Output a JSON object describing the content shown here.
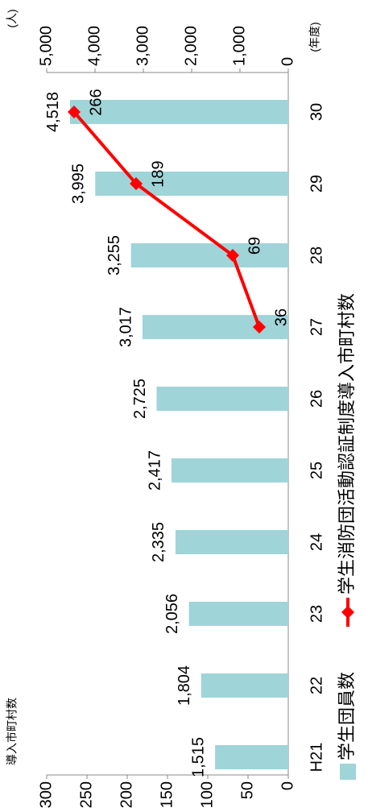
{
  "chart_data": {
    "type": "bar",
    "y_label": "導入市町村数",
    "y2_label": "(人)",
    "x_label": "(年度)",
    "categories": [
      "H21",
      "22",
      "23",
      "24",
      "25",
      "26",
      "27",
      "28",
      "29",
      "30"
    ],
    "series": [
      {
        "name": "学生団員数",
        "type": "bar",
        "color": "#9fd4d8",
        "axis": "y2",
        "values": [
          1515,
          1804,
          2056,
          2335,
          2417,
          2725,
          3017,
          3255,
          3995,
          4518
        ],
        "value_labels": [
          "1,515",
          "1,804",
          "2,056",
          "2,335",
          "2,417",
          "2,725",
          "3,017",
          "3,255",
          "3,995",
          "4,518"
        ]
      },
      {
        "name": "学生消防団活動認証制度導入市町村数",
        "type": "line",
        "color": "#ff0000",
        "axis": "y",
        "values": [
          null,
          null,
          null,
          null,
          null,
          null,
          36,
          69,
          189,
          266
        ]
      }
    ],
    "ylim": [
      0,
      300
    ],
    "yticks": [
      0,
      50,
      100,
      150,
      200,
      250,
      300
    ],
    "y2lim": [
      0,
      5000
    ],
    "y2ticks": [
      0,
      {
        "value": 1000,
        "label": "1,000"
      },
      {
        "value": 2000,
        "label": "2,000"
      },
      {
        "value": 3000,
        "label": "3,000"
      },
      {
        "value": 4000,
        "label": "4,000"
      },
      {
        "value": 5000,
        "label": "5,000"
      }
    ],
    "grid": false,
    "legend": "bottom"
  }
}
